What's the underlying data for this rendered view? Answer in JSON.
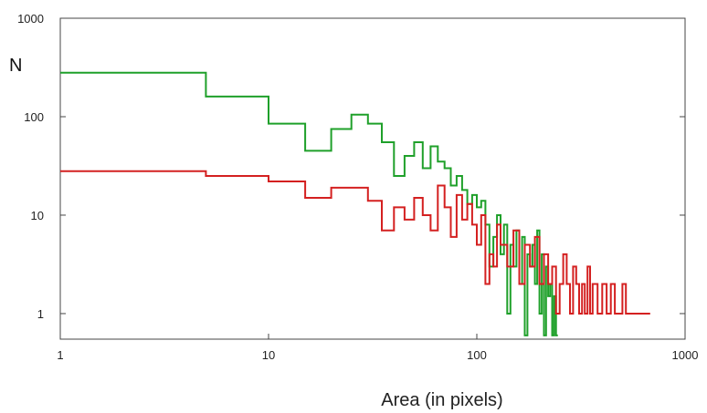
{
  "chart_data": {
    "type": "line",
    "title": "",
    "xlabel": "Area (in pixels)",
    "ylabel": "N",
    "x_scale": "log",
    "y_scale": "log",
    "xlim": [
      1,
      1000
    ],
    "ylim": [
      0.55,
      1000
    ],
    "x_ticks": [
      "1",
      "10",
      "100",
      "1000"
    ],
    "y_ticks": [
      "1",
      "10",
      "100",
      "1000"
    ],
    "grid": false,
    "legend": "none",
    "series": [
      {
        "color": "#1fa02a",
        "style": "step",
        "x": [
          1,
          5,
          10,
          15,
          20,
          25,
          30,
          35,
          40,
          45,
          50,
          55,
          60,
          65,
          70,
          75,
          80,
          85,
          90,
          95,
          100,
          105,
          110,
          115,
          120,
          125,
          130,
          135,
          140,
          145,
          150,
          155,
          160,
          165,
          170,
          175,
          180,
          185,
          190,
          195,
          200,
          205,
          210,
          215,
          220,
          225,
          230,
          235,
          240
        ],
        "y": [
          280,
          160,
          85,
          45,
          75,
          105,
          85,
          55,
          25,
          40,
          55,
          30,
          50,
          35,
          30,
          20,
          25,
          18,
          13,
          16,
          12,
          14,
          8,
          3,
          6,
          10,
          4,
          8,
          1,
          5,
          3,
          7,
          2,
          6,
          0.6,
          4,
          3,
          5,
          2,
          7,
          1,
          4,
          0.6,
          3,
          1.5,
          2,
          0.6,
          1.5,
          0.6
        ]
      },
      {
        "color": "#d42020",
        "style": "step",
        "x": [
          1,
          5,
          10,
          15,
          20,
          30,
          35,
          40,
          45,
          50,
          55,
          60,
          65,
          70,
          75,
          80,
          85,
          90,
          95,
          100,
          105,
          110,
          115,
          120,
          125,
          130,
          140,
          150,
          160,
          170,
          180,
          190,
          200,
          210,
          220,
          230,
          240,
          250,
          260,
          270,
          280,
          290,
          300,
          310,
          320,
          330,
          340,
          350,
          360,
          380,
          400,
          420,
          440,
          460,
          480,
          500,
          520,
          540,
          560,
          580,
          600,
          620,
          640,
          660
        ],
        "y": [
          28,
          25,
          22,
          15,
          19,
          14,
          7,
          12,
          9,
          15,
          10,
          7,
          20,
          12,
          6,
          16,
          9,
          13,
          8,
          5,
          10,
          2,
          4,
          3,
          8,
          5,
          3,
          7,
          2,
          5,
          3,
          6,
          2,
          4,
          2,
          3,
          1,
          2,
          4,
          2,
          1,
          3,
          2,
          1,
          2,
          1,
          3,
          1,
          2,
          1,
          2,
          1,
          2,
          1,
          1,
          2,
          1,
          1,
          1,
          1,
          1,
          1,
          1,
          1
        ]
      }
    ]
  }
}
